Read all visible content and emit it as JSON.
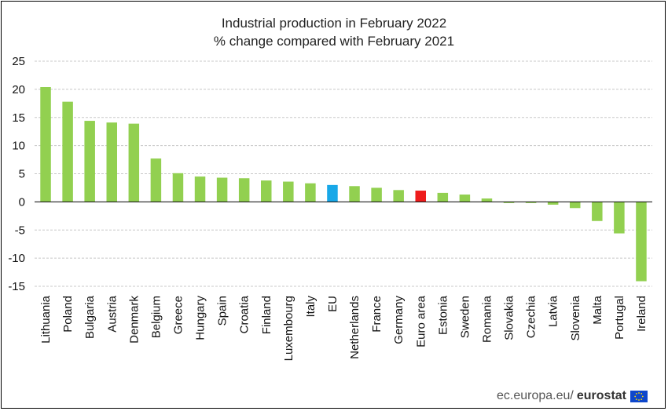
{
  "chart_data": {
    "type": "bar",
    "title": "Industrial production in February 2022",
    "subtitle": "% change compared with February 2021",
    "xlabel": "",
    "ylabel": "",
    "ylim": [
      -15,
      25
    ],
    "yticks": [
      25,
      20,
      15,
      10,
      5,
      0,
      -5,
      -10,
      -15
    ],
    "grid": true,
    "legend": "none",
    "categories": [
      "Lithuania",
      "Poland",
      "Bulgaria",
      "Austria",
      "Denmark",
      "Belgium",
      "Greece",
      "Hungary",
      "Spain",
      "Croatia",
      "Finland",
      "Luxembourg",
      "Italy",
      "EU",
      "Netherlands",
      "France",
      "Germany",
      "Euro area",
      "Estonia",
      "Sweden",
      "Romania",
      "Slovakia",
      "Czechia",
      "Latvia",
      "Slovenia",
      "Malta",
      "Portugal",
      "Ireland"
    ],
    "values": [
      20.4,
      17.8,
      14.4,
      14.1,
      13.9,
      7.7,
      5.1,
      4.5,
      4.3,
      4.2,
      3.8,
      3.6,
      3.3,
      3.0,
      2.8,
      2.5,
      2.1,
      2.0,
      1.6,
      1.3,
      0.6,
      -0.2,
      -0.2,
      -0.5,
      -1.1,
      -3.4,
      -5.6,
      -14.1
    ],
    "colors": {
      "default": "#92d050",
      "EU": "#18a8e8",
      "Euro area": "#ee1c1c",
      "grid": "#c8c8c8",
      "zero_line": "#000000"
    }
  },
  "footer": {
    "site": "ec.europa.eu/",
    "brand": "eurostat",
    "logo": "eu-flag-icon"
  }
}
